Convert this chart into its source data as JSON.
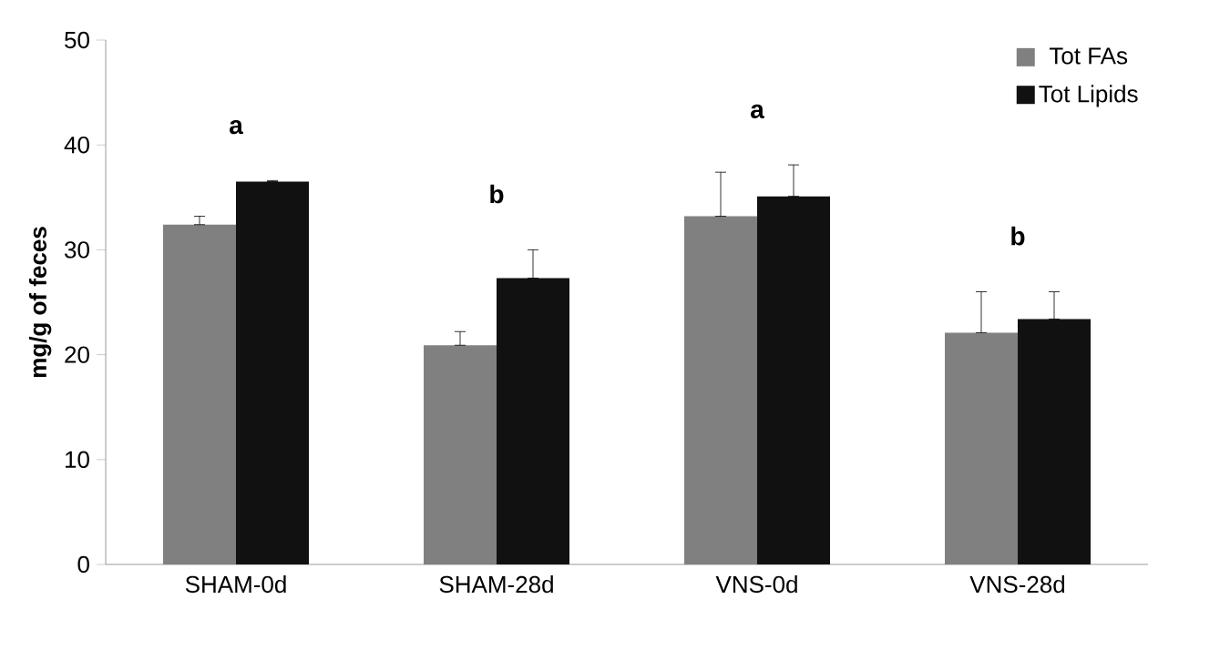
{
  "chart_data": {
    "type": "bar",
    "ylabel": "mg/g of feces",
    "categories": [
      "SHAM-0d",
      "SHAM-28d",
      "VNS-0d",
      "VNS-28d"
    ],
    "series": [
      {
        "name": "Tot FAs",
        "color": "#808080",
        "values": [
          32.4,
          20.9,
          33.2,
          22.1
        ],
        "errors": [
          [
            32.4,
            33.2
          ],
          [
            20.9,
            22.2
          ],
          [
            33.2,
            37.4
          ],
          [
            22.1,
            26.0
          ]
        ]
      },
      {
        "name": "Tot Lipids",
        "color": "#111111",
        "values": [
          36.5,
          27.3,
          35.1,
          23.4
        ],
        "errors": [
          [
            36.5,
            36.6
          ],
          [
            27.3,
            30.0
          ],
          [
            35.1,
            38.1
          ],
          [
            23.4,
            26.0
          ]
        ]
      }
    ],
    "ylim": [
      0,
      50
    ],
    "yticks": [
      0,
      10,
      20,
      30,
      40,
      50
    ],
    "grid": false,
    "legend": "top right",
    "annotations": [
      "a",
      "b",
      "a",
      "b"
    ]
  }
}
